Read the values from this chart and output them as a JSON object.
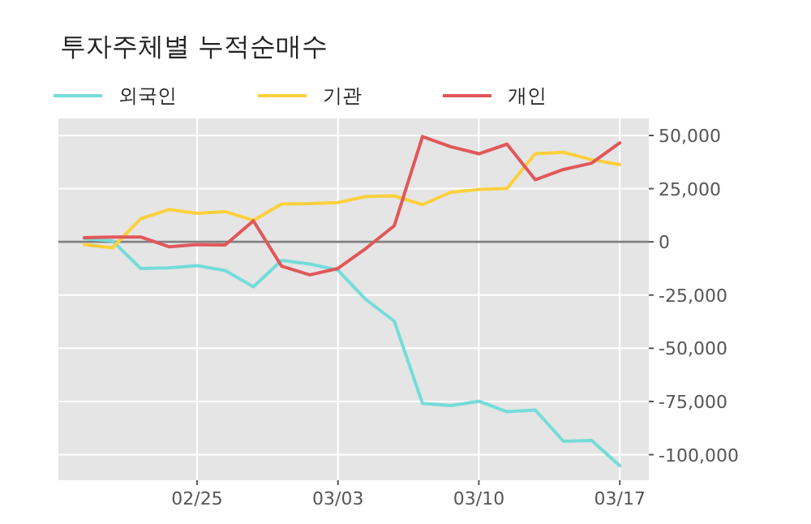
{
  "chart_data": {
    "type": "line",
    "title": "투자주체별 누적순매수",
    "categories": [
      null,
      null,
      null,
      null,
      "02/25",
      null,
      null,
      null,
      null,
      "03/03",
      null,
      null,
      null,
      null,
      "03/10",
      null,
      null,
      null,
      null,
      "03/17"
    ],
    "series": [
      {
        "name": "외국인",
        "color": "#74dcd9",
        "values": [
          1500,
          500,
          -12500,
          -12200,
          -11200,
          -13500,
          -21100,
          -8700,
          -10400,
          -13300,
          -27200,
          -37300,
          -75900,
          -76900,
          -74900,
          -79800,
          -79000,
          -93700,
          -93300,
          -105200
        ]
      },
      {
        "name": "기관",
        "color": "#fcd03c",
        "values": [
          -1300,
          -2800,
          10900,
          15200,
          13400,
          14200,
          10100,
          17800,
          18000,
          18500,
          21300,
          21600,
          17500,
          23300,
          24600,
          25100,
          41400,
          42100,
          38600,
          36300
        ]
      },
      {
        "name": "개인",
        "color": "#e15759",
        "values": [
          2000,
          2300,
          2300,
          -2300,
          -1300,
          -1500,
          9900,
          -11400,
          -15500,
          -12500,
          -3000,
          7600,
          49500,
          44700,
          41400,
          45900,
          29200,
          34000,
          37000,
          46500
        ]
      }
    ],
    "ylim": [
      -112000,
      58000
    ],
    "yticks": [
      {
        "value": 50000,
        "label": "50,000"
      },
      {
        "value": 25000,
        "label": "25,000"
      },
      0,
      {
        "value": -25000,
        "label": "-25,000"
      },
      {
        "value": -50000,
        "label": "-50,000"
      },
      {
        "value": -75000,
        "label": "-75,000"
      },
      {
        "value": -100000,
        "label": "-100,000"
      }
    ],
    "ref_lines": [
      {
        "axis": "y",
        "value": 0,
        "color": "#808080"
      }
    ],
    "grid": true,
    "legend": "top left",
    "marker": "none",
    "line_style": "solid"
  }
}
